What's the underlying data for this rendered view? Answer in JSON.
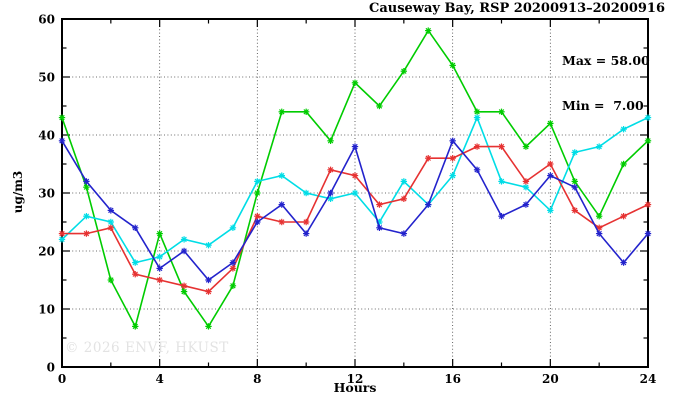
{
  "title": "Causeway Bay, RSP 20200913–20200916",
  "annotation": {
    "max_label": "Max = 58.00",
    "min_label": "Min =  7.00"
  },
  "watermark": "© 2026 ENVF, HKUST",
  "chart_data": {
    "type": "line",
    "title": "Causeway Bay, RSP 20200913–20200916",
    "xlabel": "Hours",
    "ylabel": "ug/m3",
    "xlim": [
      0,
      24
    ],
    "ylim": [
      0,
      60
    ],
    "xticks": [
      0,
      4,
      8,
      12,
      16,
      20,
      24
    ],
    "yticks": [
      0,
      10,
      20,
      30,
      40,
      50,
      60
    ],
    "minor_x_step": 2,
    "minor_y_step": 5,
    "grid": true,
    "legend": "none",
    "max_value": 58.0,
    "min_value": 7.0,
    "x": [
      0,
      1,
      2,
      3,
      4,
      5,
      6,
      7,
      8,
      9,
      10,
      11,
      12,
      13,
      14,
      15,
      16,
      17,
      18,
      19,
      20,
      21,
      22,
      23,
      24
    ],
    "series": [
      {
        "name": "green-series",
        "color": "#00cc00",
        "values": [
          43,
          31,
          15,
          7,
          23,
          13,
          7,
          14,
          30,
          44,
          44,
          39,
          49,
          45,
          51,
          58,
          52,
          44,
          44,
          38,
          42,
          32,
          26,
          35,
          39
        ]
      },
      {
        "name": "cyan-series",
        "color": "#00dde6",
        "values": [
          22,
          26,
          25,
          18,
          19,
          22,
          21,
          24,
          32,
          33,
          30,
          29,
          30,
          25,
          32,
          28,
          33,
          43,
          32,
          31,
          27,
          37,
          38,
          41,
          43
        ]
      },
      {
        "name": "red-series",
        "color": "#e63232",
        "values": [
          23,
          23,
          24,
          16,
          15,
          14,
          13,
          17,
          26,
          25,
          25,
          34,
          33,
          28,
          29,
          36,
          36,
          38,
          38,
          32,
          35,
          27,
          24,
          26,
          28
        ]
      },
      {
        "name": "blue-series",
        "color": "#2323cc",
        "values": [
          39,
          32,
          27,
          24,
          17,
          20,
          15,
          18,
          25,
          28,
          23,
          30,
          38,
          24,
          23,
          28,
          39,
          34,
          26,
          28,
          33,
          31,
          23,
          18,
          23
        ]
      }
    ]
  }
}
